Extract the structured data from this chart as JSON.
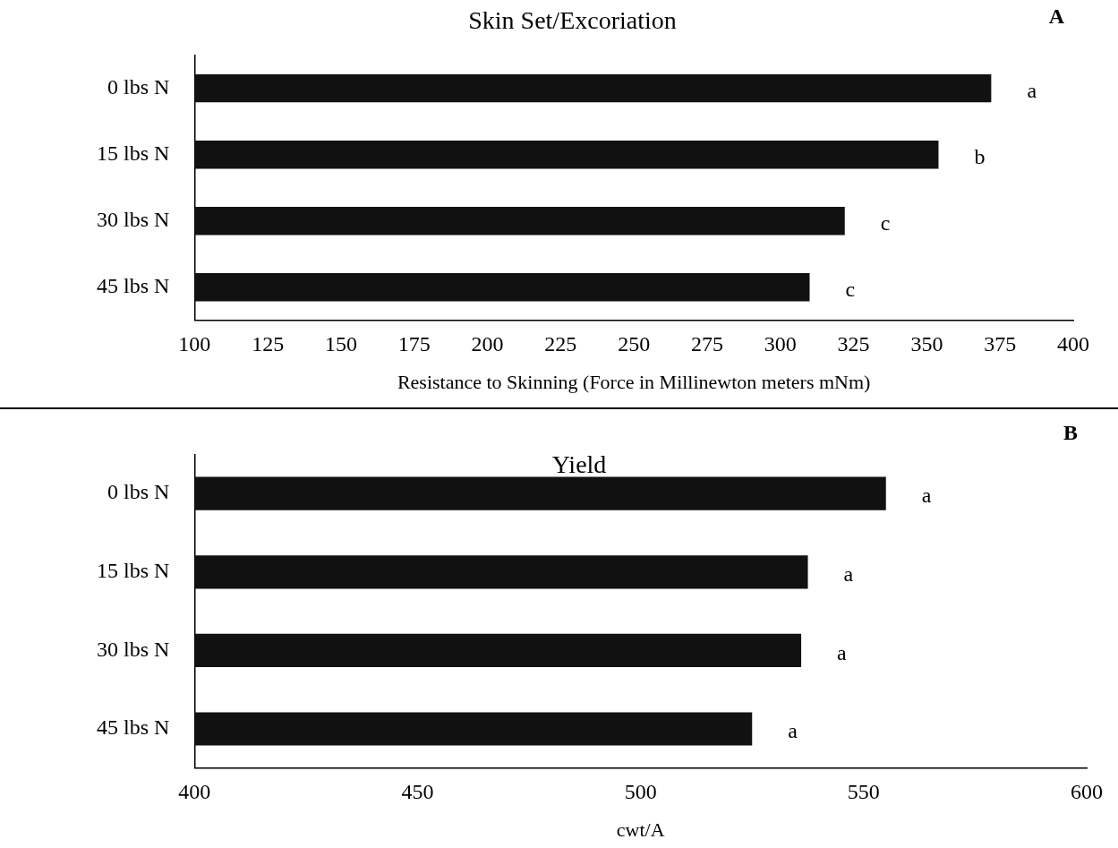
{
  "chart_data": [
    {
      "type": "bar",
      "orientation": "horizontal",
      "title": "Skin Set/Excoriation",
      "xlabel": "Resistance to Skinning (Force in Millinewton meters mNm)",
      "categories": [
        "0 lbs N",
        "15 lbs N",
        "30 lbs N",
        "45 lbs N"
      ],
      "values": [
        372,
        354,
        322,
        310
      ],
      "color": "#111111",
      "xlim": [
        100,
        400
      ],
      "xticks": [
        100,
        125,
        150,
        175,
        200,
        225,
        250,
        275,
        300,
        325,
        350,
        375,
        400
      ],
      "grid": false,
      "legend": false,
      "value_labels": [
        "a",
        "b",
        "c",
        "c"
      ],
      "annotations": [
        "A"
      ]
    },
    {
      "type": "bar",
      "orientation": "horizontal",
      "title": "Yield",
      "xlabel": "cwt/A",
      "categories": [
        "0 lbs N",
        "15 lbs N",
        "30 lbs N",
        "45 lbs N"
      ],
      "values": [
        555,
        537.5,
        536,
        525
      ],
      "color": "#111111",
      "xlim": [
        400,
        600
      ],
      "xticks": [
        400,
        450,
        500,
        550,
        600
      ],
      "grid": false,
      "legend": false,
      "value_labels": [
        "a",
        "a",
        "a",
        "a"
      ],
      "annotations": [
        "B"
      ]
    }
  ]
}
